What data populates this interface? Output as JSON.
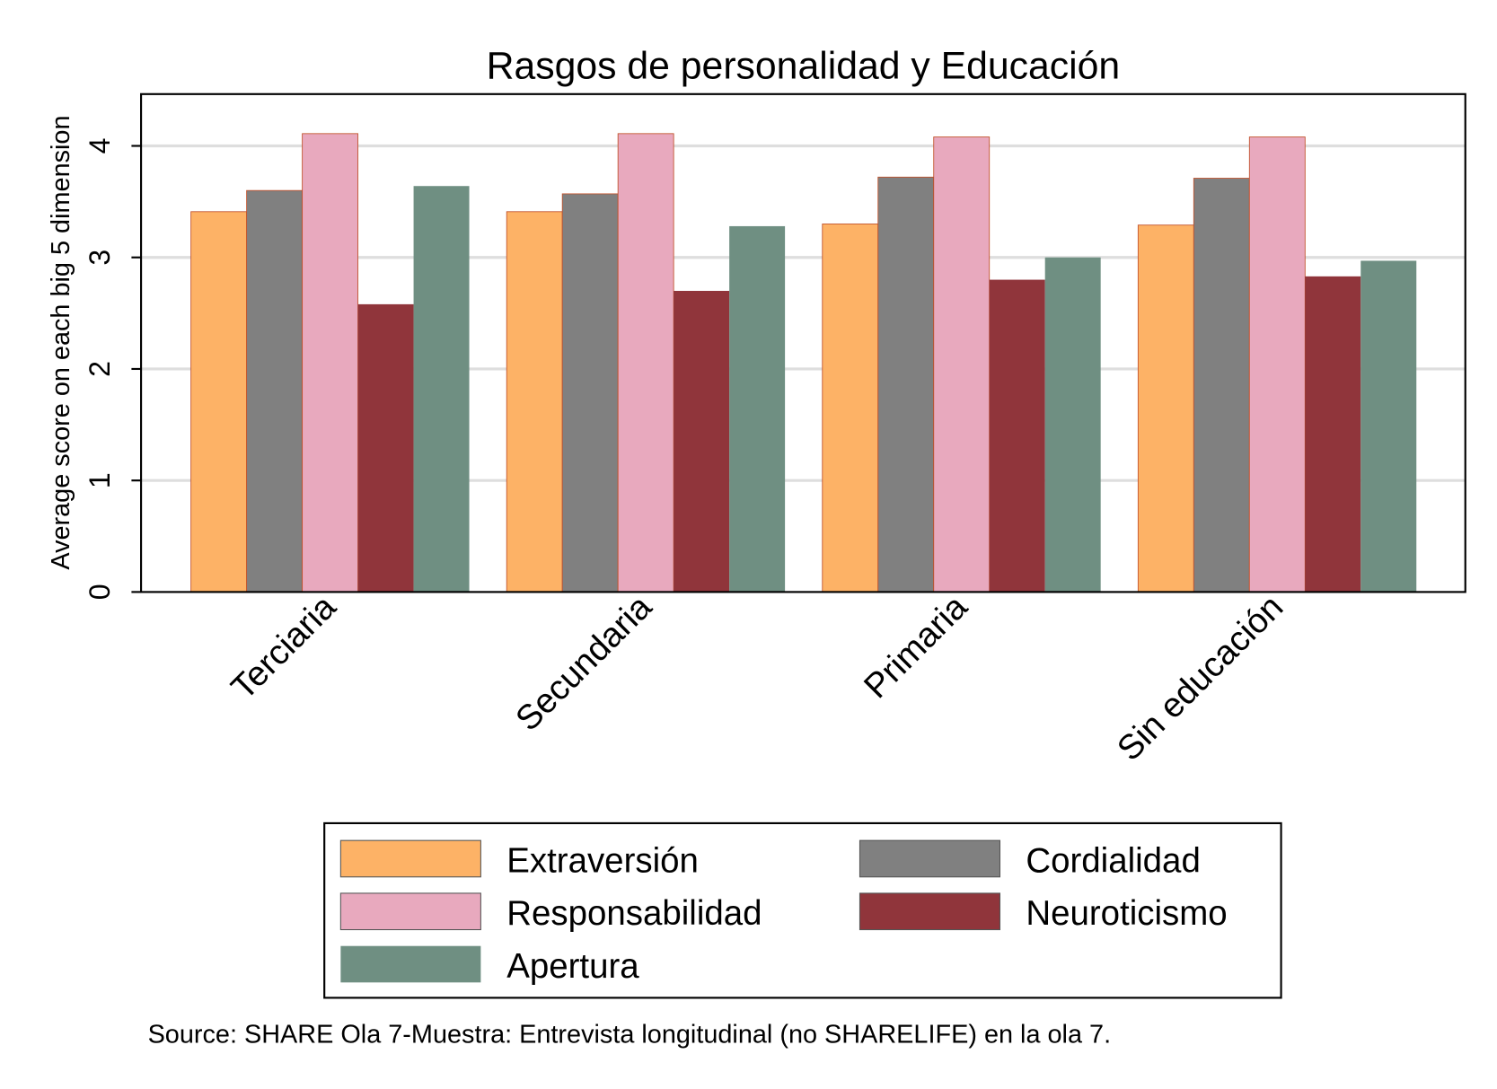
{
  "chart_data": {
    "type": "bar",
    "title": "Rasgos de personalidad y Educación",
    "ylabel": "Average score on each big 5 dimension",
    "xlabel": "",
    "ylim": [
      0,
      4.47
    ],
    "yticks": [
      0,
      1,
      2,
      3,
      4
    ],
    "grid": true,
    "categories": [
      "Terciaria",
      "Secundaria",
      "Primaria",
      "Sin educación"
    ],
    "series": [
      {
        "name": "Extraversión",
        "color": "#FDB266",
        "values": [
          3.41,
          3.41,
          3.3,
          3.29
        ]
      },
      {
        "name": "Cordialidad",
        "color": "#808080",
        "values": [
          3.6,
          3.57,
          3.72,
          3.71
        ]
      },
      {
        "name": "Responsabilidad",
        "color": "#E8A9BE",
        "values": [
          4.11,
          4.11,
          4.08,
          4.08
        ]
      },
      {
        "name": "Neuroticismo",
        "color": "#90353B",
        "values": [
          2.58,
          2.7,
          2.8,
          2.83
        ]
      },
      {
        "name": "Apertura",
        "color": "#6F8F82",
        "values": [
          3.64,
          3.28,
          3.0,
          2.97
        ]
      }
    ],
    "legend_position": "bottom",
    "note": "Source: SHARE Ola 7-Muestra: Entrevista longitudinal (no SHARELIFE) en la ola 7."
  }
}
